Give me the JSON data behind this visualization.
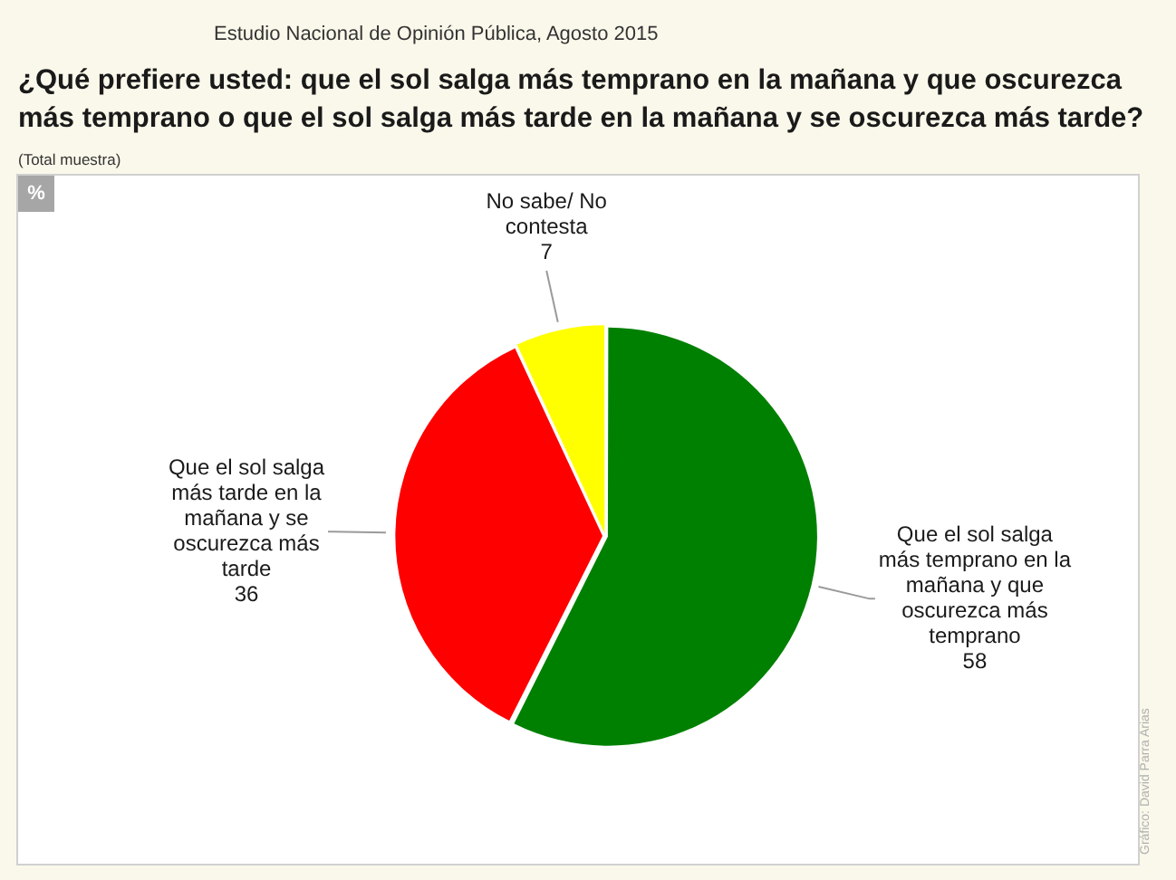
{
  "chart_data": {
    "type": "pie",
    "title": "¿Qué prefiere usted: que el sol salga más temprano en la mañana y que oscurezca más temprano o que el sol salga más tarde en la mañana y se oscurezca más tarde?",
    "subtitle": "(Total muestra)",
    "categories": [
      "Que el sol salga más temprano en la mañana y que oscurezca más temprano",
      "Que el sol salga más tarde en la mañana y se oscurezca más tarde",
      "No sabe/ No contesta"
    ],
    "values": [
      58,
      36,
      7
    ],
    "colors": [
      "#008000",
      "#ff0000",
      "#ffff00"
    ],
    "data_labels": true,
    "legend": false,
    "annotations": [
      "Estudio Nacional de Opinión Pública, Agosto 2015",
      "%",
      "Gráfico: David Parra Arias"
    ]
  }
}
